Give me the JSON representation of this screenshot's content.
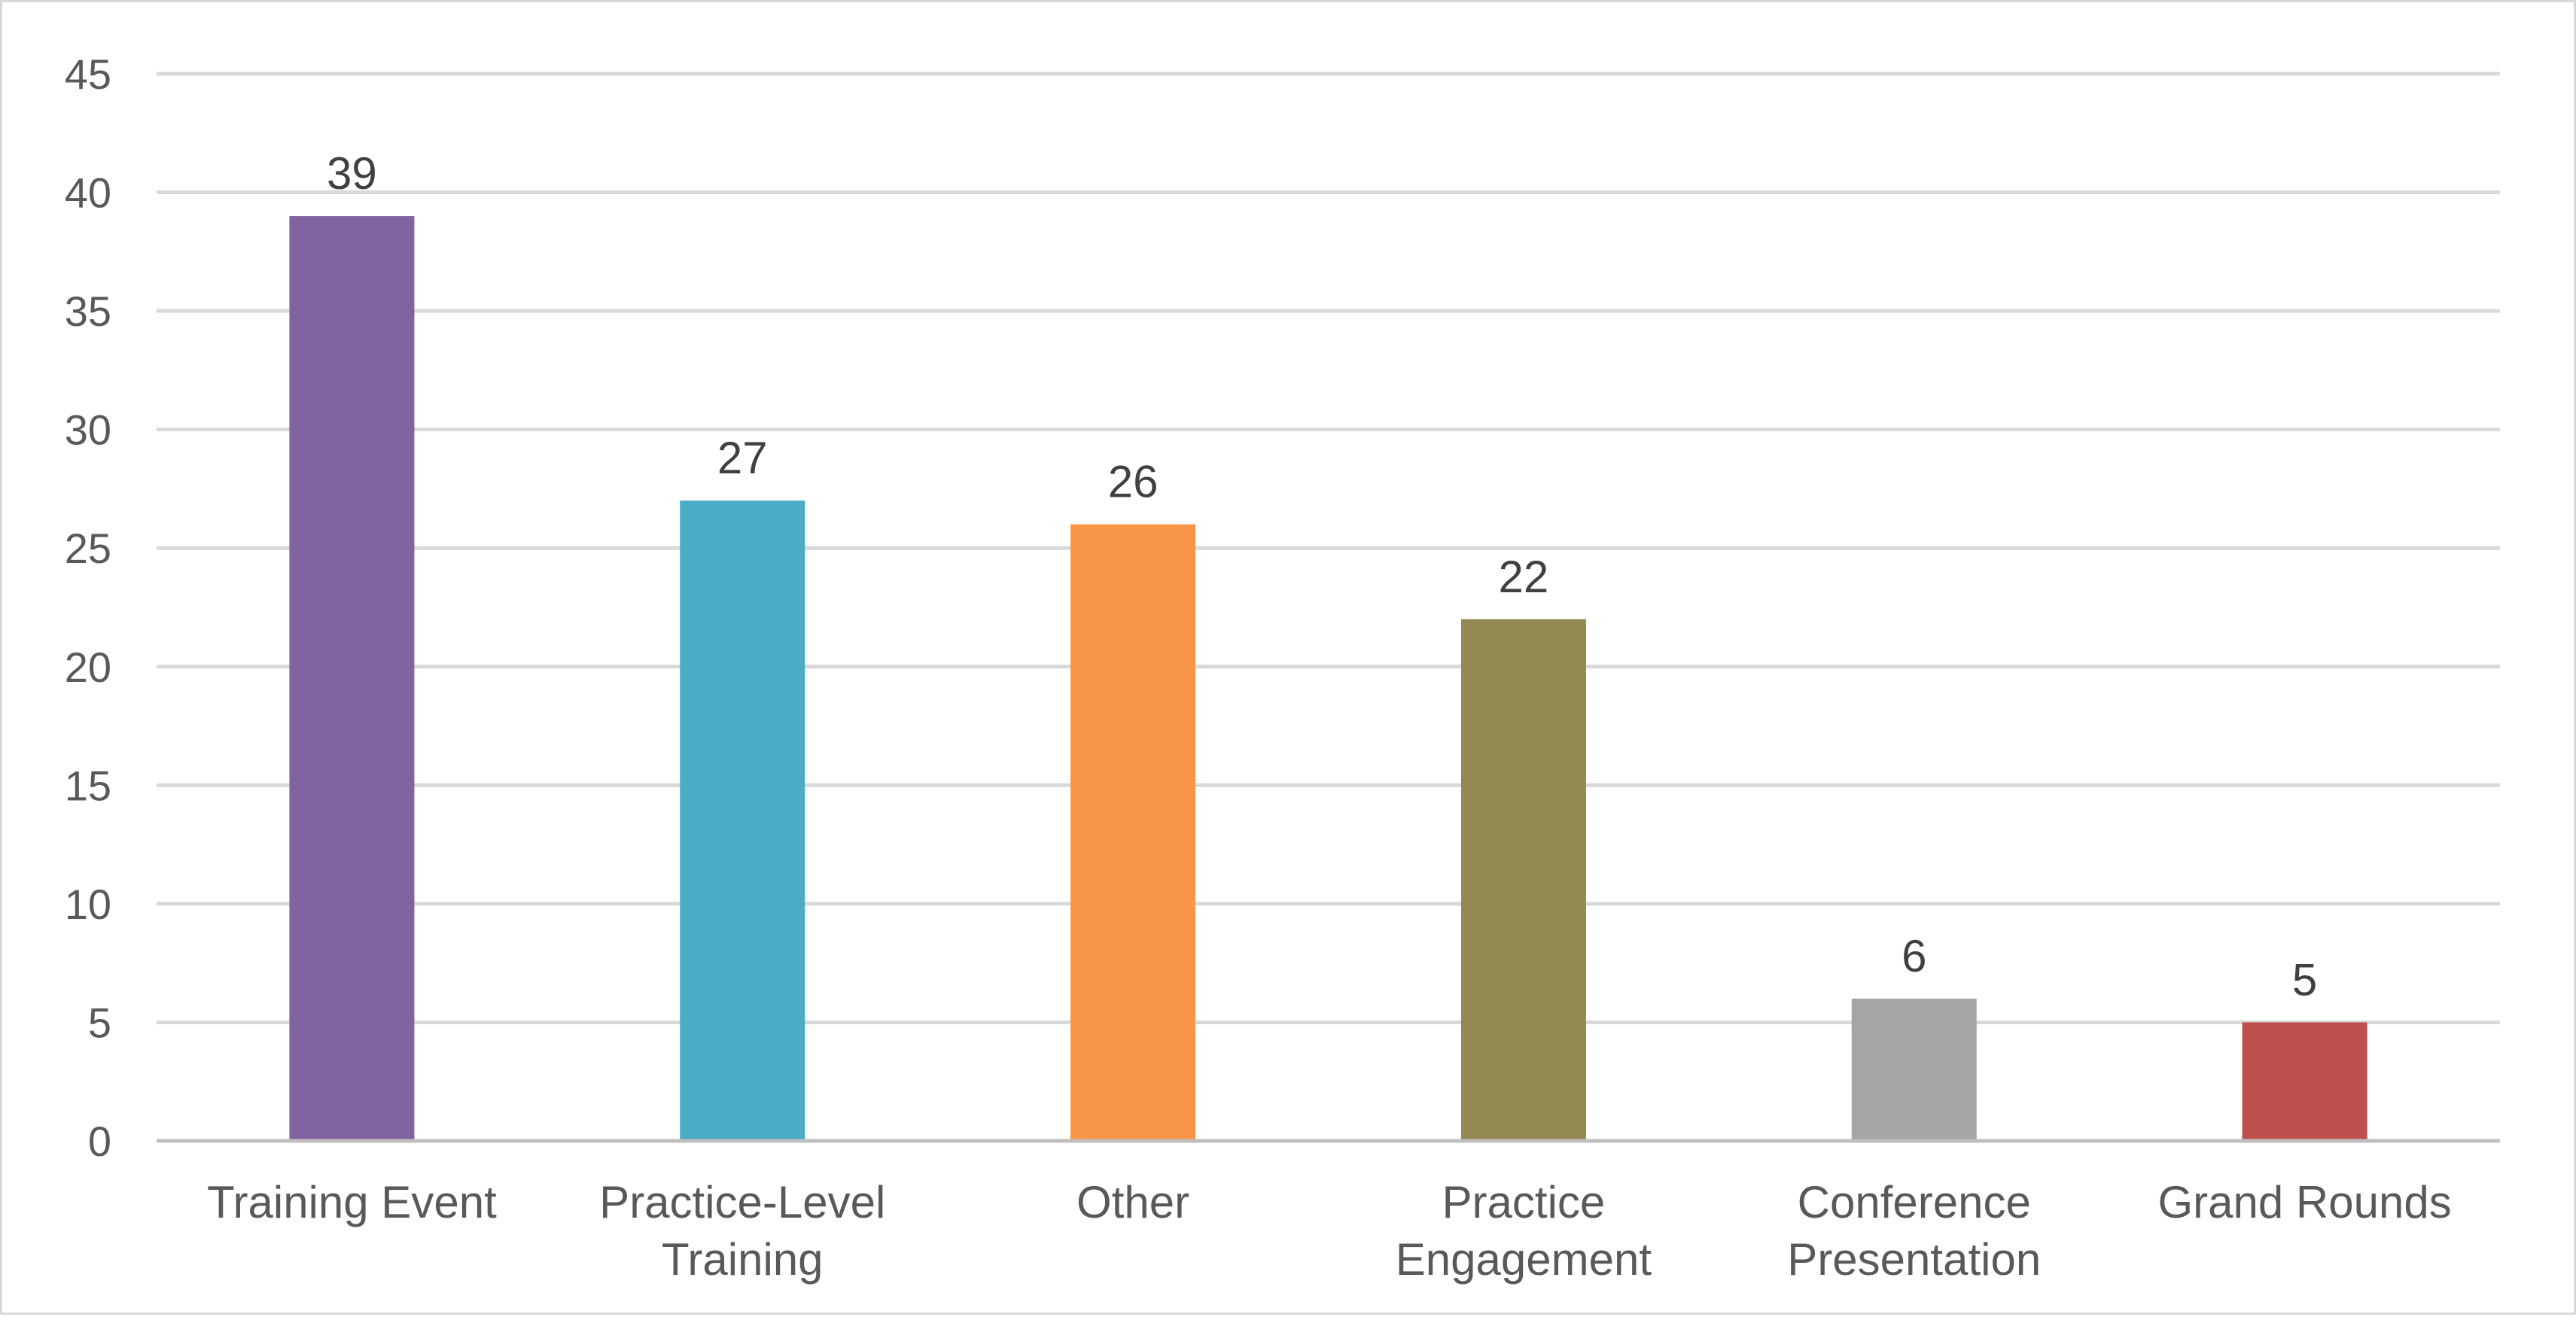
{
  "chart_data": {
    "type": "bar",
    "categories": [
      [
        "Training Event"
      ],
      [
        "Practice-Level",
        "Training"
      ],
      [
        "Other"
      ],
      [
        "Practice",
        "Engagement"
      ],
      [
        "Conference",
        "Presentation"
      ],
      [
        "Grand Rounds"
      ]
    ],
    "values": [
      39,
      27,
      26,
      22,
      6,
      5
    ],
    "data_labels": [
      "39",
      "27",
      "26",
      "22",
      "6",
      "5"
    ],
    "colors": [
      "#8064A2",
      "#4BACC6",
      "#F79646",
      "#938953",
      "#A5A5A5",
      "#C0504D"
    ],
    "ylim": [
      0,
      45
    ],
    "yticks": [
      "0",
      "5",
      "10",
      "15",
      "20",
      "25",
      "30",
      "35",
      "40",
      "45"
    ],
    "grid": true,
    "legend": "none"
  }
}
